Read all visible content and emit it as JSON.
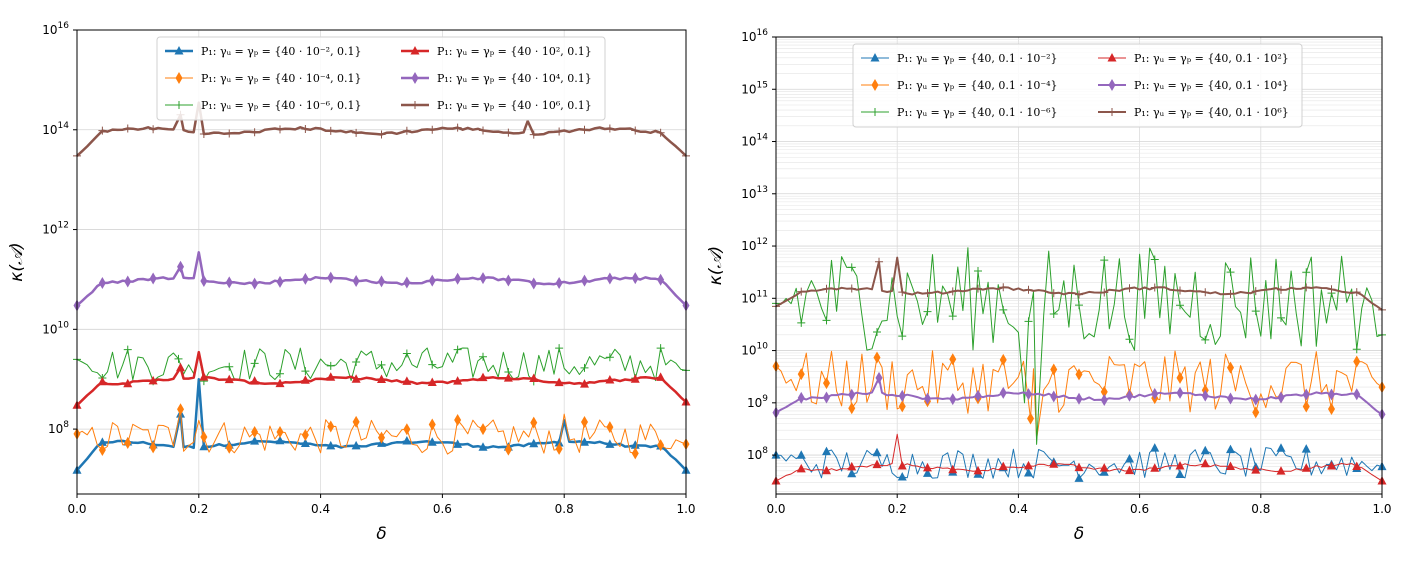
{
  "chart_data": [
    {
      "type": "line",
      "xlabel": "δ",
      "ylabel": "κ(𝒜)",
      "xlim": [
        0,
        1
      ],
      "ylim": [
        5000000,
        10000000000000000
      ],
      "yscale": "log",
      "grid": true,
      "legend_position": "top-center",
      "x_ticks": [
        "0.0",
        "0.2",
        "0.4",
        "0.6",
        "0.8",
        "1.0"
      ],
      "y_ticks": [
        {
          "base": "10",
          "exp": "8"
        },
        {
          "base": "10",
          "exp": "10"
        },
        {
          "base": "10",
          "exp": "12"
        },
        {
          "base": "10",
          "exp": "14"
        },
        {
          "base": "10",
          "exp": "16"
        }
      ],
      "series": [
        {
          "name": "P₁: γᵤ = γₚ = {40 · 10⁻², 0.1}",
          "color": "#1f77b4",
          "marker": "triangle",
          "width": 2.5,
          "level": 50000000,
          "noise": 0.05,
          "spikes": [
            [
              0.17,
              200000000
            ],
            [
              0.2,
              1000000000
            ],
            [
              0.8,
              150000000
            ]
          ],
          "edge_left": 15000000,
          "edge_right": 15000000
        },
        {
          "name": "P₁: γᵤ = γₚ = {40 · 10⁻⁴, 0.1}",
          "color": "#ff7f0e",
          "marker": "diamond",
          "width": 1,
          "level": 70000000,
          "noise": 0.35,
          "spikes": [
            [
              0.17,
              250000000
            ],
            [
              0.2,
              150000000
            ],
            [
              0.8,
              200000000
            ]
          ],
          "edge_left": 80000000,
          "edge_right": 50000000
        },
        {
          "name": "P₁: γᵤ = γₚ = {40 · 10⁻⁶, 0.1}",
          "color": "#2ca02c",
          "marker": "plus",
          "width": 1,
          "level": 2000000000,
          "noise": 0.35,
          "spikes": [],
          "edge_left": 2500000000,
          "edge_right": 1500000000
        },
        {
          "name": "P₁: γᵤ = γₚ = {40 · 10², 0.1}",
          "color": "#d62728",
          "marker": "triangle",
          "width": 2.5,
          "level": 950000000,
          "noise": 0.05,
          "spikes": [
            [
              0.17,
              1700000000
            ],
            [
              0.2,
              3500000000
            ]
          ],
          "edge_left": 300000000,
          "edge_right": 350000000
        },
        {
          "name": "P₁: γᵤ = γₚ = {40 · 10⁴, 0.1}",
          "color": "#9467bd",
          "marker": "diamond",
          "width": 2.5,
          "level": 95000000000,
          "noise": 0.05,
          "spikes": [
            [
              0.17,
              180000000000
            ],
            [
              0.2,
              350000000000
            ]
          ],
          "edge_left": 30000000000,
          "edge_right": 30000000000
        },
        {
          "name": "P₁: γᵤ = γₚ = {40 · 10⁶, 0.1}",
          "color": "#8c564b",
          "marker": "plus",
          "width": 2.5,
          "level": 95000000000000,
          "noise": 0.05,
          "spikes": [
            [
              0.17,
              200000000000000
            ],
            [
              0.2,
              350000000000000
            ],
            [
              0.74,
              150000000000000
            ]
          ],
          "edge_left": 30000000000000,
          "edge_right": 30000000000000
        }
      ]
    },
    {
      "type": "line",
      "xlabel": "δ",
      "ylabel": "κ(𝒜)",
      "xlim": [
        0,
        1
      ],
      "ylim": [
        18000000,
        10000000000000000
      ],
      "yscale": "log",
      "grid": true,
      "legend_position": "top-center",
      "x_ticks": [
        "0.0",
        "0.2",
        "0.4",
        "0.6",
        "0.8",
        "1.0"
      ],
      "y_ticks": [
        {
          "base": "10",
          "exp": "8"
        },
        {
          "base": "10",
          "exp": "9"
        },
        {
          "base": "10",
          "exp": "10"
        },
        {
          "base": "10",
          "exp": "11"
        },
        {
          "base": "10",
          "exp": "12"
        },
        {
          "base": "10",
          "exp": "13"
        },
        {
          "base": "10",
          "exp": "14"
        },
        {
          "base": "10",
          "exp": "15"
        },
        {
          "base": "10",
          "exp": "16"
        }
      ],
      "series": [
        {
          "name": "P₁: γᵤ = γₚ = {40, 0.1 · 10⁻²}",
          "color": "#1f77b4",
          "marker": "triangle",
          "width": 1,
          "level": 70000000,
          "noise": 0.3,
          "spikes": [],
          "edge_left": 100000000,
          "edge_right": 60000000
        },
        {
          "name": "P₁: γᵤ = γₚ = {40, 0.1 · 10⁻⁴}",
          "color": "#ff7f0e",
          "marker": "diamond",
          "width": 1,
          "level": 2500000000,
          "noise": 0.6,
          "spikes": [
            [
              0.42,
              500000000
            ],
            [
              0.43,
              200000000
            ]
          ],
          "edge_left": 5000000000,
          "edge_right": 2000000000
        },
        {
          "name": "P₁: γᵤ = γₚ = {40, 0.1 · 10⁻⁶}",
          "color": "#2ca02c",
          "marker": "plus",
          "width": 1,
          "level": 100000000000,
          "noise": 1.0,
          "spikes": [
            [
              0.41,
              1000000000
            ],
            [
              0.43,
              160000000
            ]
          ],
          "edge_left": 80000000000,
          "edge_right": 20000000000
        },
        {
          "name": "P₁: γᵤ = γₚ = {40, 0.1 · 10²}",
          "color": "#d62728",
          "marker": "triangle",
          "width": 1,
          "level": 58000000,
          "noise": 0.06,
          "spikes": [
            [
              0.2,
              250000000
            ]
          ],
          "edge_left": 32000000,
          "edge_right": 32000000
        },
        {
          "name": "P₁: γᵤ = γₚ = {40, 0.1 · 10⁴}",
          "color": "#9467bd",
          "marker": "diamond",
          "width": 2,
          "level": 1350000000,
          "noise": 0.05,
          "spikes": [
            [
              0.17,
              3000000000
            ]
          ],
          "edge_left": 650000000,
          "edge_right": 600000000
        },
        {
          "name": "P₁: γᵤ = γₚ = {40, 0.1 · 10⁶}",
          "color": "#8c564b",
          "marker": "plus",
          "width": 2,
          "level": 140000000000,
          "noise": 0.05,
          "spikes": [
            [
              0.17,
              500000000000
            ],
            [
              0.2,
              600000000000
            ]
          ],
          "edge_left": 70000000000,
          "edge_right": 60000000000
        }
      ]
    }
  ]
}
